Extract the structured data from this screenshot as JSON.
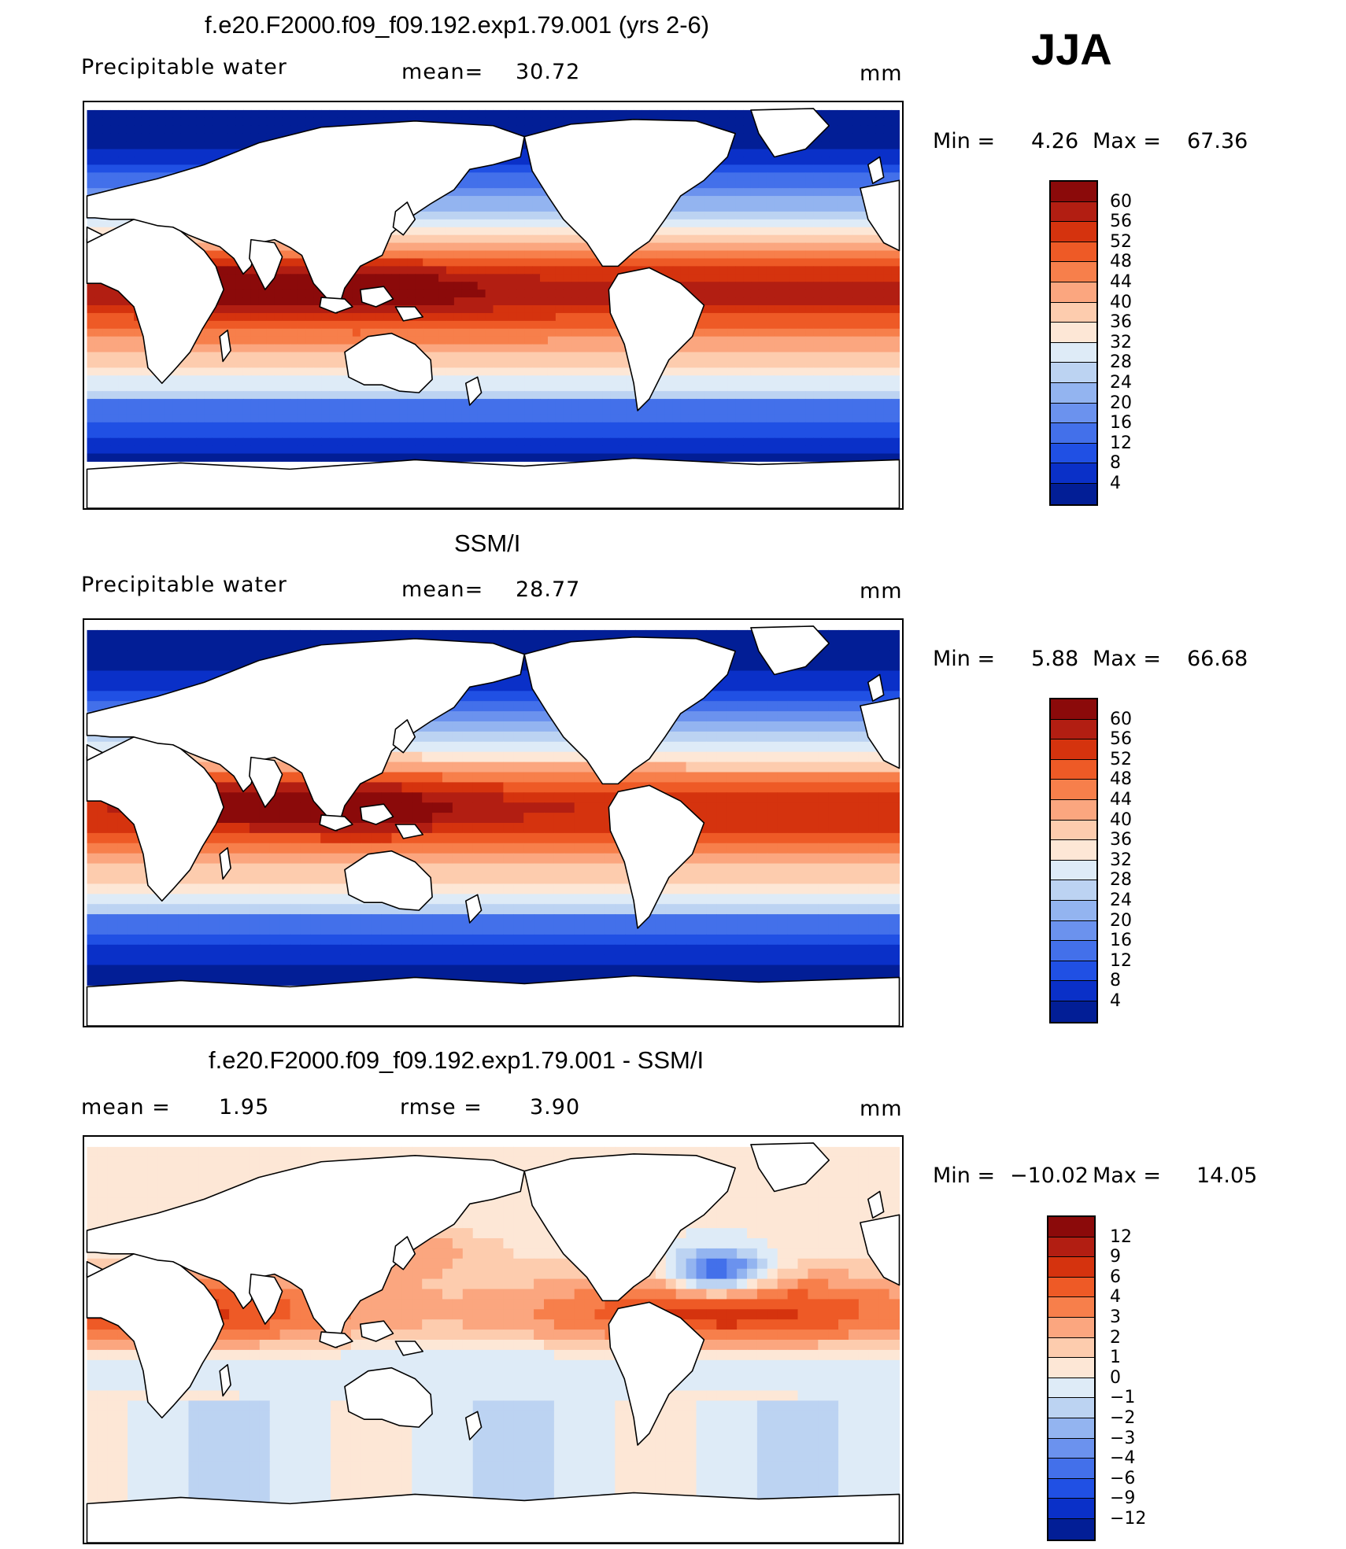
{
  "season": "JJA",
  "panels": [
    {
      "title": "f.e20.F2000.f09_f09.192.exp1.79.001 (yrs 2-6)",
      "variable": "Precipitable water",
      "stat1_label": "mean=",
      "stat1_value": "30.72",
      "units": "mm",
      "min_label": "Min =",
      "min_value": "4.26",
      "max_label": "Max =",
      "max_value": "67.36"
    },
    {
      "title": "SSM/I",
      "variable": "Precipitable water",
      "stat1_label": "mean=",
      "stat1_value": "28.77",
      "units": "mm",
      "min_label": "Min =",
      "min_value": "5.88",
      "max_label": "Max =",
      "max_value": "66.68"
    },
    {
      "title": "f.e20.F2000.f09_f09.192.exp1.79.001 - SSM/I",
      "stat1_label": "mean =",
      "stat1_value": "1.95",
      "stat2_label": "rmse =",
      "stat2_value": "3.90",
      "units": "mm",
      "min_label": "Min =",
      "min_value": "−10.02",
      "max_label": "Max =",
      "max_value": "14.05"
    }
  ],
  "chart_data": [
    {
      "type": "heatmap",
      "title": "f.e20.F2000.f09_f09.192.exp1.79.001 (yrs 2-6)",
      "subtitle": "Precipitable water",
      "units": "mm",
      "mean": 30.72,
      "min": 4.26,
      "max": 67.36,
      "colorbar_levels": [
        60,
        56,
        52,
        48,
        44,
        40,
        36,
        32,
        28,
        24,
        20,
        16,
        12,
        8,
        4
      ],
      "colorbar_colors": [
        "#8b0a0a",
        "#b21e12",
        "#d5330e",
        "#ee5a26",
        "#f77f4b",
        "#fba67f",
        "#fdccae",
        "#fde7d6",
        "#deebf7",
        "#bcd3f2",
        "#93b4f0",
        "#6b92ee",
        "#4370ea",
        "#2050e4",
        "#0a30c8",
        "#021e96"
      ]
    },
    {
      "type": "heatmap",
      "title": "SSM/I",
      "subtitle": "Precipitable water",
      "units": "mm",
      "mean": 28.77,
      "min": 5.88,
      "max": 66.68,
      "colorbar_levels": [
        60,
        56,
        52,
        48,
        44,
        40,
        36,
        32,
        28,
        24,
        20,
        16,
        12,
        8,
        4
      ],
      "colorbar_colors": [
        "#8b0a0a",
        "#b21e12",
        "#d5330e",
        "#ee5a26",
        "#f77f4b",
        "#fba67f",
        "#fdccae",
        "#fde7d6",
        "#deebf7",
        "#bcd3f2",
        "#93b4f0",
        "#6b92ee",
        "#4370ea",
        "#2050e4",
        "#0a30c8",
        "#021e96"
      ]
    },
    {
      "type": "heatmap",
      "title": "f.e20.F2000.f09_f09.192.exp1.79.001 - SSM/I",
      "units": "mm",
      "mean": 1.95,
      "rmse": 3.9,
      "min": -10.02,
      "max": 14.05,
      "colorbar_levels": [
        "12",
        "9",
        "6",
        "4",
        "3",
        "2",
        "1",
        "0",
        "−1",
        "−2",
        "−3",
        "−4",
        "−6",
        "−9",
        "−12"
      ],
      "colorbar_colors": [
        "#8b0a0a",
        "#b21e12",
        "#d5330e",
        "#ee5a26",
        "#f77f4b",
        "#fba67f",
        "#fdccae",
        "#fde7d6",
        "#deebf7",
        "#bcd3f2",
        "#93b4f0",
        "#6b92ee",
        "#4370ea",
        "#2050e4",
        "#0a30c8",
        "#021e96"
      ]
    }
  ]
}
